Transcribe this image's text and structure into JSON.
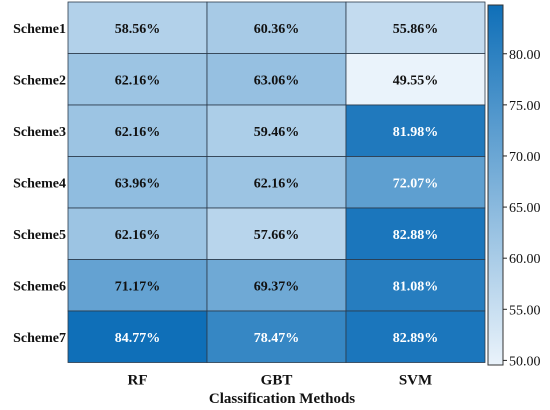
{
  "chart_data": {
    "type": "heatmap",
    "rows": [
      "Scheme1",
      "Scheme2",
      "Scheme3",
      "Scheme4",
      "Scheme5",
      "Scheme6",
      "Scheme7"
    ],
    "columns": [
      "RF",
      "GBT",
      "SVM"
    ],
    "values": [
      [
        58.56,
        60.36,
        55.86
      ],
      [
        62.16,
        63.06,
        49.55
      ],
      [
        62.16,
        59.46,
        81.98
      ],
      [
        63.96,
        62.16,
        72.07
      ],
      [
        62.16,
        57.66,
        82.88
      ],
      [
        71.17,
        69.37,
        81.08
      ],
      [
        84.77,
        78.47,
        82.89
      ]
    ],
    "cell_labels": [
      [
        "58.56%",
        "60.36%",
        "55.86%"
      ],
      [
        "62.16%",
        "63.06%",
        "49.55%"
      ],
      [
        "62.16%",
        "59.46%",
        "81.98%"
      ],
      [
        "63.96%",
        "62.16%",
        "72.07%"
      ],
      [
        "62.16%",
        "57.66%",
        "82.88%"
      ],
      [
        "71.17%",
        "69.37%",
        "81.08%"
      ],
      [
        "84.77%",
        "78.47%",
        "82.89%"
      ]
    ],
    "xlabel": "Classification Methods",
    "colorbar": {
      "ticks": [
        50,
        55,
        60,
        65,
        70,
        75,
        80
      ],
      "tick_labels": [
        "50.00",
        "55.00",
        "60.00",
        "65.00",
        "70.00",
        "75.00",
        "80.00"
      ],
      "range": [
        49.55,
        84.77
      ],
      "colors": [
        "#eaf3fb",
        "#0f6fb8"
      ]
    }
  }
}
